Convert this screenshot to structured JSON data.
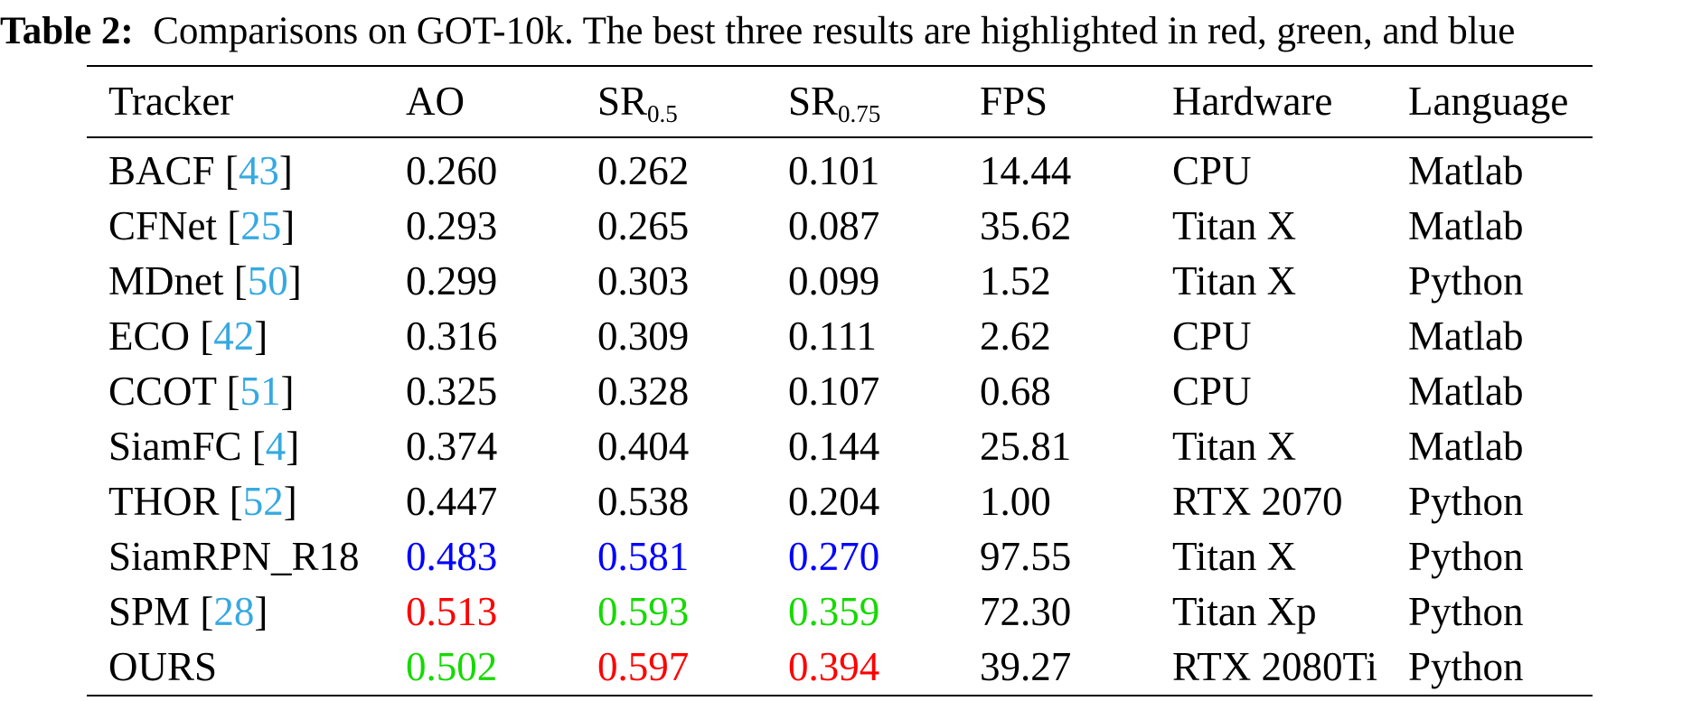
{
  "caption": {
    "label": "Table 2:",
    "text": "Comparisons on GOT-10k. The best three results are highlighted in red, green, and blue"
  },
  "colors": {
    "citation": "#36a9e0",
    "first": "#ff0000",
    "second": "#16d900",
    "third": "#0000ff"
  },
  "table": {
    "headers": {
      "tracker": "Tracker",
      "ao": "AO",
      "sr_05_base": "SR",
      "sr_05_sub": "0.5",
      "sr_075_base": "SR",
      "sr_075_sub": "0.75",
      "fps": "FPS",
      "hardware": "Hardware",
      "language": "Language"
    },
    "rows": [
      {
        "name": "BACF",
        "ref": "43",
        "ao": "0.260",
        "sr05": "0.262",
        "sr075": "0.101",
        "fps": "14.44",
        "hardware": "CPU",
        "language": "Matlab"
      },
      {
        "name": "CFNet",
        "ref": "25",
        "ao": "0.293",
        "sr05": "0.265",
        "sr075": "0.087",
        "fps": "35.62",
        "hardware": "Titan X",
        "language": "Matlab"
      },
      {
        "name": "MDnet",
        "ref": "50",
        "ao": "0.299",
        "sr05": "0.303",
        "sr075": "0.099",
        "fps": "1.52",
        "hardware": "Titan X",
        "language": "Python"
      },
      {
        "name": "ECO",
        "ref": "42",
        "ao": "0.316",
        "sr05": "0.309",
        "sr075": "0.111",
        "fps": "2.62",
        "hardware": "CPU",
        "language": "Matlab"
      },
      {
        "name": "CCOT",
        "ref": "51",
        "ao": "0.325",
        "sr05": "0.328",
        "sr075": "0.107",
        "fps": "0.68",
        "hardware": "CPU",
        "language": "Matlab"
      },
      {
        "name": "SiamFC",
        "ref": "4",
        "ao": "0.374",
        "sr05": "0.404",
        "sr075": "0.144",
        "fps": "25.81",
        "hardware": "Titan X",
        "language": "Matlab"
      },
      {
        "name": "THOR",
        "ref": "52",
        "ao": "0.447",
        "sr05": "0.538",
        "sr075": "0.204",
        "fps": "1.00",
        "hardware": "RTX 2070",
        "language": "Python"
      },
      {
        "name": "SiamRPN_R18",
        "ref": "",
        "ao": "0.483",
        "sr05": "0.581",
        "sr075": "0.270",
        "fps": "97.55",
        "hardware": "Titan X",
        "language": "Python",
        "highlight": {
          "ao": "third",
          "sr05": "third",
          "sr075": "third"
        }
      },
      {
        "name": "SPM",
        "ref": "28",
        "ao": "0.513",
        "sr05": "0.593",
        "sr075": "0.359",
        "fps": "72.30",
        "hardware": "Titan Xp",
        "language": "Python",
        "highlight": {
          "ao": "first",
          "sr05": "second",
          "sr075": "second"
        }
      },
      {
        "name": "OURS",
        "ref": "",
        "ao": "0.502",
        "sr05": "0.597",
        "sr075": "0.394",
        "fps": "39.27",
        "hardware": "RTX 2080Ti",
        "language": "Python",
        "highlight": {
          "ao": "second",
          "sr05": "first",
          "sr075": "first"
        }
      }
    ]
  }
}
